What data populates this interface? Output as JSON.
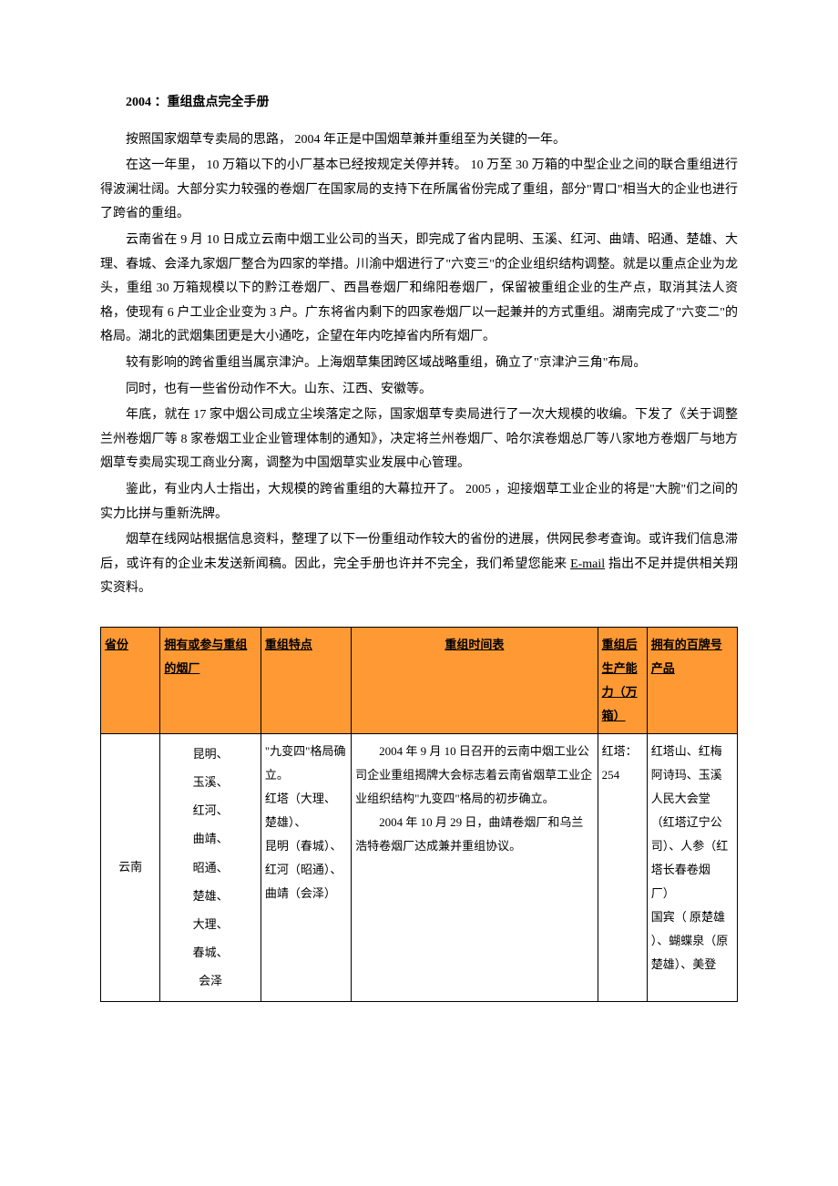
{
  "title": "2004 ：重组盘点完全手册",
  "paragraphs": {
    "p1": "按照国家烟草专卖局的思路， 2004 年正是中国烟草兼并重组至为关键的一年。",
    "p2": "在这一年里， 10 万箱以下的小厂基本已经按规定关停并转。 10 万至 30 万箱的中型企业之间的联合重组进行得波澜壮阔。大部分实力较强的卷烟厂在国家局的支持下在所属省份完成了重组，部分\"胃口\"相当大的企业也进行了跨省的重组。",
    "p3": "云南省在 9 月 10 日成立云南中烟工业公司的当天，即完成了省内昆明、玉溪、红河、曲靖、昭通、楚雄、大理、春城、会泽九家烟厂整合为四家的举措。川渝中烟进行了\"六变三\"的企业组织结构调整。就是以重点企业为龙头，重组 30 万箱规模以下的黔江卷烟厂、西昌卷烟厂和绵阳卷烟厂，保留被重组企业的生产点，取消其法人资格，使现有 6 户工业企业变为 3 户。广东将省内剩下的四家卷烟厂以一起兼并的方式重组。湖南完成了\"六变二\"的格局。湖北的武烟集团更是大小通吃，企望在年内吃掉省内所有烟厂。",
    "p4": "较有影响的跨省重组当属京津沪。上海烟草集团跨区域战略重组，确立了\"京津沪三角\"布局。",
    "p5": "同时，也有一些省份动作不大。山东、江西、安徽等。",
    "p6": "年底，就在 17 家中烟公司成立尘埃落定之际，国家烟草专卖局进行了一次大规模的收编。下发了《关于调整兰州卷烟厂等 8 家卷烟工业企业管理体制的通知》，决定将兰州卷烟厂、哈尔滨卷烟总厂等八家地方卷烟厂与地方烟草专卖局实现工商业分离，调整为中国烟草实业发展中心管理。",
    "p7": "鉴此，有业内人士指出，大规模的跨省重组的大幕拉开了。 2005 ，迎接烟草工业企业的将是\"大腕\"们之间的实力比拼与重新洗牌。",
    "p8a": "烟草在线网站根据信息资料，整理了以下一份重组动作较大的省份的进展，供网民参考查询。或许我们信息滞后，或许有的企业未发送新闻稿。因此，完全手册也许并不完全，我们希望您能来 ",
    "p8_email": "E-mail",
    "p8b": " 指出不足并提供相关翔实资料。"
  },
  "table": {
    "header_bg": "#ff9933",
    "columns": {
      "province": "省份",
      "factories": "拥有或参与重组的烟厂",
      "features": "重组特点",
      "timeline": "重组时间表",
      "capacity": "重组后生产能力（万箱）",
      "brands": "拥有的百牌号产品"
    },
    "row1": {
      "province": "云南",
      "factories_list": "昆明、\n玉溪、\n红河、\n曲靖、\n昭通、\n楚雄、\n大理、\n春城、\n会泽",
      "features": "\"九变四\"格局确立。\n红塔（大理、楚雄）、\n昆明（春城）、\n红河（昭通）、\n曲靖（会泽）",
      "timeline_p1": "2004 年 9 月 10 日召开的云南中烟工业公司企业重组揭牌大会标志着云南省烟草工业企业组织结构\"九变四\"格局的初步确立。",
      "timeline_p2": "2004 年 10 月 29 日，曲靖卷烟厂和乌兰浩特卷烟厂达成兼并重组协议。",
      "capacity": "红塔：254",
      "brands": "红塔山、红梅\n阿诗玛、玉溪\n人民大会堂（红塔辽宁公司）、人参（红塔长春卷烟厂）\n国宾（ 原楚雄 ）、蝴蝶泉（原楚雄）、美登"
    }
  }
}
